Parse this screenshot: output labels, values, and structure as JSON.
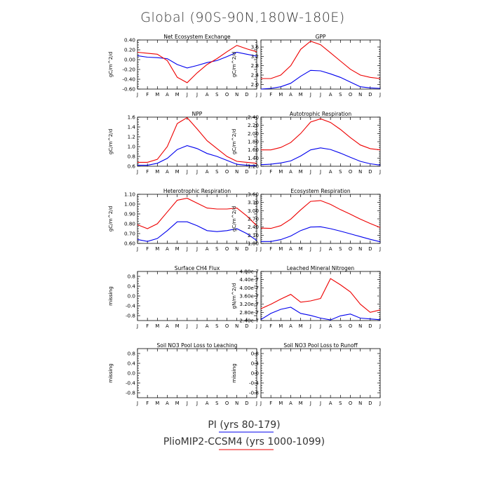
{
  "title": "Global (90S-90N,180W-180E)",
  "colors": {
    "pi": "#0000ee",
    "plio": "#ee0000"
  },
  "legend": [
    {
      "label": "PI (yrs 80-179)",
      "color": "#0000ee"
    },
    {
      "label": "PlioMIP2-CCSM4 (yrs 1000-1099)",
      "color": "#ee0000"
    }
  ],
  "chart_data": [
    {
      "type": "line",
      "title": "Net Ecosystem Exchange",
      "ylabel": "gC/m^2/d",
      "x": [
        "J",
        "F",
        "M",
        "A",
        "M",
        "J",
        "J",
        "A",
        "S",
        "O",
        "N",
        "D",
        "J"
      ],
      "ylim": [
        -0.6,
        0.4
      ],
      "yticks": [
        0.4,
        0.2,
        0.0,
        -0.2,
        -0.4,
        -0.6
      ],
      "ytick_labels": [
        "0.40",
        "0.20",
        "0.00",
        "-0.20",
        "-0.40",
        "-0.60"
      ],
      "series": [
        {
          "name": "PI (yrs 80-179)",
          "values": [
            0.08,
            0.05,
            0.04,
            0.02,
            -0.1,
            -0.17,
            -0.12,
            -0.06,
            -0.02,
            0.06,
            0.15,
            0.11,
            0.07
          ]
        },
        {
          "name": "PlioMIP2-CCSM4 (yrs 1000-1099)",
          "values": [
            0.15,
            0.13,
            0.11,
            -0.02,
            -0.36,
            -0.47,
            -0.27,
            -0.1,
            0.02,
            0.16,
            0.29,
            0.22,
            0.16
          ]
        }
      ]
    },
    {
      "type": "line",
      "title": "GPP",
      "ylabel": "gC/m^2/d",
      "x": [
        "J",
        "F",
        "M",
        "A",
        "M",
        "J",
        "J",
        "A",
        "S",
        "O",
        "N",
        "D",
        "J"
      ],
      "ylim": [
        1.8,
        3.9
      ],
      "yticks": [
        3.6,
        3.2,
        2.8,
        2.4,
        2.0
      ],
      "ytick_labels": [
        "3.6",
        "3.2",
        "2.8",
        "2.4",
        "2.0"
      ],
      "series": [
        {
          "name": "PI (yrs 80-179)",
          "values": [
            1.8,
            1.83,
            1.9,
            2.05,
            2.35,
            2.6,
            2.58,
            2.45,
            2.3,
            2.1,
            1.9,
            1.85,
            1.83
          ]
        },
        {
          "name": "PlioMIP2-CCSM4 (yrs 1000-1099)",
          "values": [
            2.25,
            2.25,
            2.4,
            2.8,
            3.5,
            3.85,
            3.7,
            3.35,
            3.0,
            2.65,
            2.4,
            2.3,
            2.25
          ]
        }
      ]
    },
    {
      "type": "line",
      "title": "NPP",
      "ylabel": "gC/m^2/d",
      "x": [
        "J",
        "F",
        "M",
        "A",
        "M",
        "J",
        "J",
        "A",
        "S",
        "O",
        "N",
        "D",
        "J"
      ],
      "ylim": [
        0.6,
        1.6
      ],
      "yticks": [
        1.6,
        1.4,
        1.2,
        1.0,
        0.8,
        0.6
      ],
      "ytick_labels": [
        "1.6",
        "1.4",
        "1.2",
        "1.0",
        "0.8",
        "0.6"
      ],
      "series": [
        {
          "name": "PI (yrs 80-179)",
          "values": [
            0.62,
            0.62,
            0.66,
            0.76,
            0.94,
            1.02,
            0.96,
            0.86,
            0.8,
            0.72,
            0.64,
            0.62,
            0.61
          ]
        },
        {
          "name": "PlioMIP2-CCSM4 (yrs 1000-1099)",
          "values": [
            0.68,
            0.68,
            0.74,
            1.0,
            1.47,
            1.59,
            1.36,
            1.12,
            0.96,
            0.8,
            0.7,
            0.68,
            0.66
          ]
        }
      ]
    },
    {
      "type": "line",
      "title": "Autotrophic Respiration",
      "ylabel": "gC/m^2/d",
      "x": [
        "J",
        "F",
        "M",
        "A",
        "M",
        "J",
        "J",
        "A",
        "S",
        "O",
        "N",
        "D",
        "J"
      ],
      "ylim": [
        1.2,
        2.4
      ],
      "yticks": [
        2.4,
        2.2,
        2.0,
        1.8,
        1.6,
        1.4,
        1.2
      ],
      "ytick_labels": [
        "2.40",
        "2.20",
        "2.00",
        "1.80",
        "1.60",
        "1.40",
        "1.20"
      ],
      "series": [
        {
          "name": "PI (yrs 80-179)",
          "values": [
            1.24,
            1.25,
            1.28,
            1.33,
            1.45,
            1.6,
            1.65,
            1.61,
            1.52,
            1.42,
            1.32,
            1.26,
            1.23
          ]
        },
        {
          "name": "PlioMIP2-CCSM4 (yrs 1000-1099)",
          "values": [
            1.6,
            1.6,
            1.66,
            1.78,
            2.0,
            2.28,
            2.36,
            2.27,
            2.1,
            1.9,
            1.72,
            1.63,
            1.6
          ]
        }
      ]
    },
    {
      "type": "line",
      "title": "Heterotrophic Respiration",
      "ylabel": "gC/m^2/d",
      "x": [
        "J",
        "F",
        "M",
        "A",
        "M",
        "J",
        "J",
        "A",
        "S",
        "O",
        "N",
        "D",
        "J"
      ],
      "ylim": [
        0.6,
        1.1
      ],
      "yticks": [
        1.1,
        1.0,
        0.9,
        0.8,
        0.7,
        0.6
      ],
      "ytick_labels": [
        "1.10",
        "1.00",
        "0.90",
        "0.80",
        "0.70",
        "0.60"
      ],
      "series": [
        {
          "name": "PI (yrs 80-179)",
          "values": [
            0.64,
            0.62,
            0.65,
            0.73,
            0.82,
            0.82,
            0.78,
            0.73,
            0.72,
            0.73,
            0.75,
            0.7,
            0.63
          ]
        },
        {
          "name": "PlioMIP2-CCSM4 (yrs 1000-1099)",
          "values": [
            0.79,
            0.75,
            0.8,
            0.92,
            1.04,
            1.06,
            1.01,
            0.96,
            0.95,
            0.95,
            0.96,
            0.88,
            0.78
          ]
        }
      ]
    },
    {
      "type": "line",
      "title": "Ecosystem Respiration",
      "ylabel": "gC/m^2/d",
      "x": [
        "J",
        "F",
        "M",
        "A",
        "M",
        "J",
        "J",
        "A",
        "S",
        "O",
        "N",
        "D",
        "J"
      ],
      "ylim": [
        1.8,
        3.6
      ],
      "yticks": [
        3.6,
        3.3,
        3.0,
        2.7,
        2.4,
        2.1,
        1.8
      ],
      "ytick_labels": [
        "3.60",
        "3.30",
        "3.00",
        "2.70",
        "2.40",
        "2.10",
        "1.80"
      ],
      "series": [
        {
          "name": "PI (yrs 80-179)",
          "values": [
            1.87,
            1.87,
            1.94,
            2.07,
            2.27,
            2.4,
            2.41,
            2.34,
            2.25,
            2.15,
            2.05,
            1.95,
            1.86
          ]
        },
        {
          "name": "PlioMIP2-CCSM4 (yrs 1000-1099)",
          "values": [
            2.36,
            2.35,
            2.45,
            2.69,
            3.03,
            3.34,
            3.37,
            3.23,
            3.04,
            2.87,
            2.69,
            2.53,
            2.38
          ]
        }
      ]
    },
    {
      "type": "line",
      "title": "Surface CH4 Flux",
      "ylabel": "missing",
      "x": [
        "J",
        "F",
        "M",
        "A",
        "M",
        "J",
        "J",
        "A",
        "S",
        "O",
        "N",
        "D",
        "J"
      ],
      "ylim": [
        -1.0,
        1.0
      ],
      "yticks": [
        0.8,
        0.4,
        0.0,
        -0.4,
        -0.8
      ],
      "ytick_labels": [
        "0.8",
        "0.4",
        "0.0",
        "-0.4",
        "-0.8"
      ],
      "series": []
    },
    {
      "type": "line",
      "title": "Leached Mineral Nitrogen",
      "ylabel": "gN/m^2/d",
      "x": [
        "J",
        "F",
        "M",
        "A",
        "M",
        "J",
        "J",
        "A",
        "S",
        "O",
        "N",
        "D",
        "J"
      ],
      "ylim": [
        2.4e-07,
        4.8e-07
      ],
      "yticks": [
        4.8e-07,
        4.4e-07,
        4e-07,
        3.6e-07,
        3.2e-07,
        2.8e-07,
        2.4e-07
      ],
      "ytick_labels": [
        "4.80e-7",
        "4.40e-7",
        "4.00e-7",
        "3.60e-7",
        "3.20e-7",
        "2.80e-7",
        "2.40e-7"
      ],
      "series": [
        {
          "name": "PI (yrs 80-179)",
          "values": [
            2.45e-07,
            2.75e-07,
            2.95e-07,
            3.05e-07,
            2.75e-07,
            2.65e-07,
            2.52e-07,
            2.43e-07,
            2.63e-07,
            2.72e-07,
            2.52e-07,
            2.48e-07,
            2.44e-07
          ]
        },
        {
          "name": "PlioMIP2-CCSM4 (yrs 1000-1099)",
          "values": [
            2.98e-07,
            3.2e-07,
            3.45e-07,
            3.68e-07,
            3.3e-07,
            3.36e-07,
            3.48e-07,
            4.45e-07,
            4.15e-07,
            3.8e-07,
            3.2e-07,
            2.8e-07,
            2.92e-07
          ]
        }
      ]
    },
    {
      "type": "line",
      "title": "Soil NO3 Pool Loss to Leaching",
      "ylabel": "missing",
      "x": [
        "J",
        "F",
        "M",
        "A",
        "M",
        "J",
        "J",
        "A",
        "S",
        "O",
        "N",
        "D",
        "J"
      ],
      "ylim": [
        -1.0,
        1.0
      ],
      "yticks": [
        0.8,
        0.4,
        0.0,
        -0.4,
        -0.8
      ],
      "ytick_labels": [
        "0.8",
        "0.4",
        "0.0",
        "-0.4",
        "-0.8"
      ],
      "series": []
    },
    {
      "type": "line",
      "title": "Soil NO3 Pool Loss to Runoff",
      "ylabel": "missing",
      "x": [
        "J",
        "F",
        "M",
        "A",
        "M",
        "J",
        "J",
        "A",
        "S",
        "O",
        "N",
        "D",
        "J"
      ],
      "ylim": [
        -1.0,
        1.0
      ],
      "yticks": [
        0.8,
        0.4,
        0.0,
        -0.4,
        -0.8
      ],
      "ytick_labels": [
        "0.8",
        "0.4",
        "0.0",
        "-0.4",
        "-0.8"
      ],
      "series": []
    }
  ]
}
